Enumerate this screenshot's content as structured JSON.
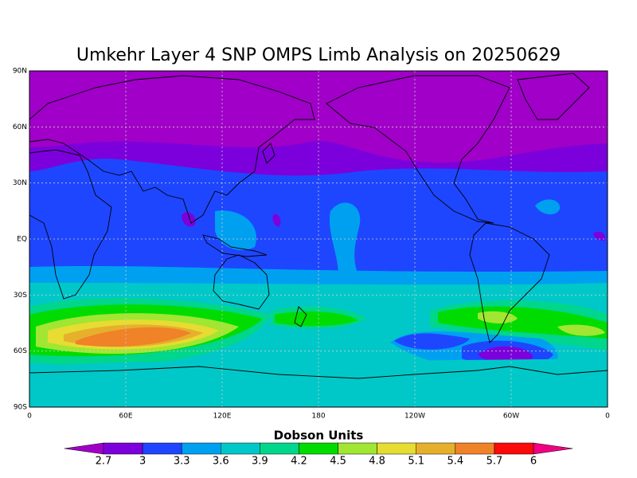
{
  "title": "Umkehr Layer 4 SNP OMPS Limb Analysis on 20250629",
  "map": {
    "lat_labels": [
      "90N",
      "60N",
      "30N",
      "EQ",
      "30S",
      "60S",
      "90S"
    ],
    "lon_labels": [
      "0",
      "60E",
      "120E",
      "180",
      "120W",
      "60W",
      "0"
    ]
  },
  "colorbar": {
    "title": "Dobson Units",
    "levels": [
      2.7,
      3,
      3.3,
      3.6,
      3.9,
      4.2,
      4.5,
      4.8,
      5.1,
      5.4,
      5.7,
      6
    ],
    "colors": [
      "#a000c8",
      "#7c00dc",
      "#1e46ff",
      "#00a0f0",
      "#00c8c8",
      "#00d68c",
      "#00dc00",
      "#a0e632",
      "#e6dc32",
      "#e6b02d",
      "#f08228",
      "#fa0a0a",
      "#f00082"
    ]
  }
}
